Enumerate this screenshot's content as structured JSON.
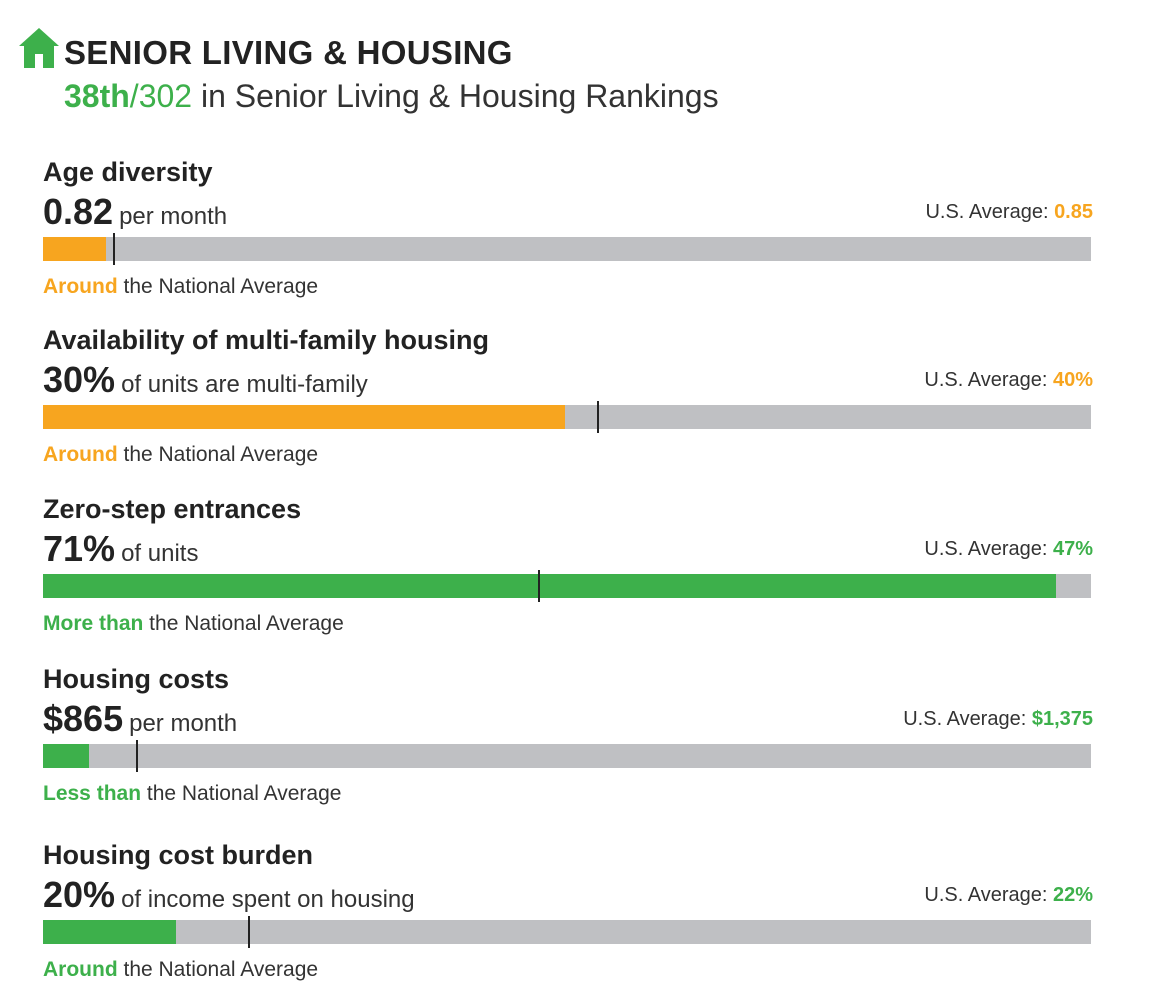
{
  "header": {
    "title": "SENIOR LIVING & HOUSING",
    "rank": "38th",
    "rank_total": "/302",
    "rank_suffix": " in Senior Living & Housing Rankings",
    "icon": "house-icon",
    "accent_color": "#3db04b"
  },
  "colors": {
    "orange": "#f7a51f",
    "green": "#3db04b",
    "track": "#bfc0c3"
  },
  "metrics": [
    {
      "title": "Age diversity",
      "value": "0.82",
      "unit": "per month",
      "avg_label": "U.S. Average: ",
      "avg_value": "0.85",
      "comparison_strong": "Around",
      "comparison_rest": " the National Average",
      "color": "#f7a51f",
      "fill_fraction": 0.06,
      "avg_fraction": 0.067
    },
    {
      "title": "Availability of multi-family housing",
      "value": "30%",
      "unit": "of units are multi-family",
      "avg_label": "U.S. Average: ",
      "avg_value": "40%",
      "comparison_strong": "Around",
      "comparison_rest": " the National Average",
      "color": "#f7a51f",
      "fill_fraction": 0.498,
      "avg_fraction": 0.529
    },
    {
      "title": "Zero-step entrances",
      "value": "71%",
      "unit": "of units",
      "avg_label": "U.S. Average: ",
      "avg_value": "47%",
      "comparison_strong": "More than",
      "comparison_rest": " the National Average",
      "color": "#3db04b",
      "fill_fraction": 0.967,
      "avg_fraction": 0.472
    },
    {
      "title": "Housing costs",
      "value": "$865",
      "unit": "per month",
      "avg_label": "U.S. Average: ",
      "avg_value": "$1,375",
      "comparison_strong": "Less than",
      "comparison_rest": " the National Average",
      "color": "#3db04b",
      "fill_fraction": 0.044,
      "avg_fraction": 0.089
    },
    {
      "title": "Housing cost burden",
      "value": "20%",
      "unit": "of income spent on housing",
      "avg_label": "U.S. Average: ",
      "avg_value": "22%",
      "comparison_strong": "Around",
      "comparison_rest": " the National Average",
      "color": "#3db04b",
      "fill_fraction": 0.127,
      "avg_fraction": 0.196
    }
  ],
  "chart_data": {
    "type": "bar",
    "categories": [
      "Age diversity",
      "Availability of multi-family housing",
      "Zero-step entrances",
      "Housing costs",
      "Housing cost burden"
    ],
    "series": [
      {
        "values": [
          "0.82",
          "30%",
          "71%",
          "$865",
          "20%"
        ]
      },
      {
        "name": "U.S. Average",
        "values": [
          "0.85",
          "40%",
          "47%",
          "$1,375",
          "22%"
        ]
      }
    ],
    "legend": "none",
    "grid": false
  }
}
